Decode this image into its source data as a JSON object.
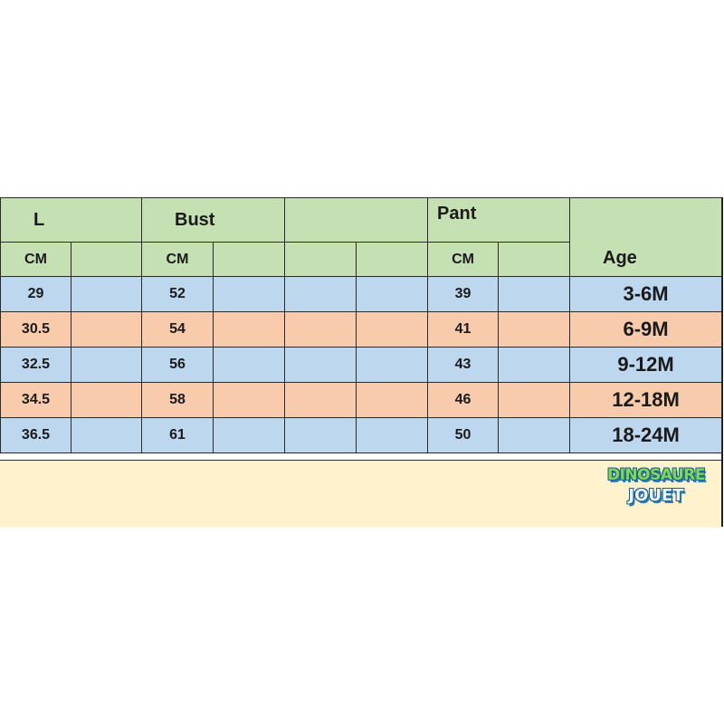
{
  "headers": {
    "length": "L",
    "bust": "Bust",
    "pant": "Pant",
    "age": "Age",
    "unit": "CM"
  },
  "rows": [
    {
      "length": "29",
      "bust": "52",
      "pant": "39",
      "age": "3-6M"
    },
    {
      "length": "30.5",
      "bust": "54",
      "pant": "41",
      "age": "6-9M"
    },
    {
      "length": "32.5",
      "bust": "56",
      "pant": "43",
      "age": "9-12M"
    },
    {
      "length": "34.5",
      "bust": "58",
      "pant": "46",
      "age": "12-18M"
    },
    {
      "length": "36.5",
      "bust": "61",
      "pant": "50",
      "age": "18-24M"
    }
  ],
  "logo": {
    "line1": "DINOSAURE",
    "line2": "JOUET"
  },
  "colors": {
    "header": "#c5e0b3",
    "row_blue": "#bdd7ee",
    "row_orange": "#f8cbad",
    "footer": "#fff2cc"
  }
}
